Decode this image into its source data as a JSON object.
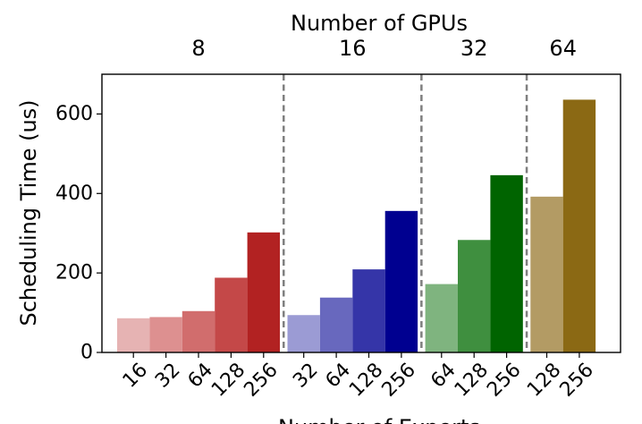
{
  "chart_data": {
    "type": "bar",
    "title": "",
    "top_axis_label": "Number of GPUs",
    "ylabel": "Scheduling Time (us)",
    "xlabel": "Number of Experts",
    "ylim": [
      0,
      700
    ],
    "yticks": [
      0,
      200,
      400,
      600
    ],
    "grid": false,
    "groups": [
      {
        "gpus": "8",
        "experts": [
          "16",
          "32",
          "64",
          "128",
          "256"
        ],
        "values": [
          86,
          89,
          104,
          188,
          302
        ],
        "colors": [
          "#e6b3b3",
          "#dd9090",
          "#d16d6d",
          "#c44848",
          "#b22222"
        ]
      },
      {
        "gpus": "16",
        "experts": [
          "32",
          "64",
          "128",
          "256"
        ],
        "values": [
          94,
          138,
          209,
          356
        ],
        "colors": [
          "#9b9bd4",
          "#6868be",
          "#3535a8",
          "#000090"
        ]
      },
      {
        "gpus": "32",
        "experts": [
          "64",
          "128",
          "256"
        ],
        "values": [
          172,
          283,
          446
        ],
        "colors": [
          "#7fb47f",
          "#3f8f3f",
          "#006400"
        ]
      },
      {
        "gpus": "64",
        "experts": [
          "128",
          "256"
        ],
        "values": [
          392,
          636
        ],
        "colors": [
          "#b39b64",
          "#8b6914"
        ]
      }
    ]
  }
}
